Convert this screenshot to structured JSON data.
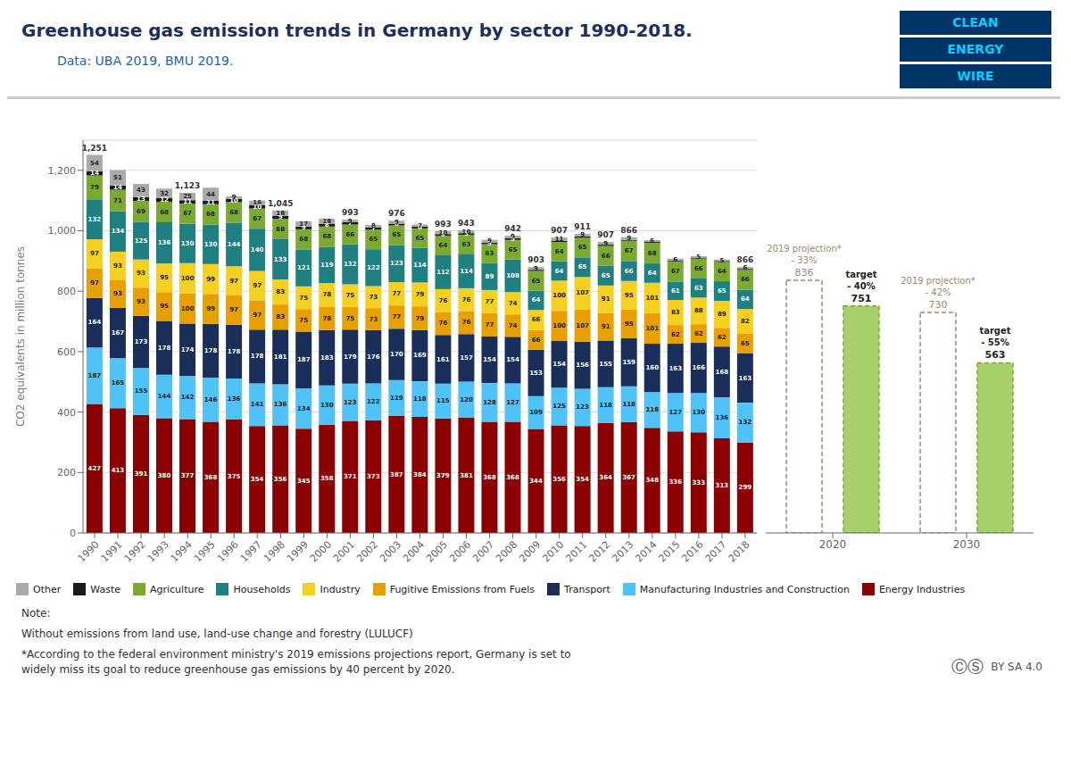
{
  "chart_data": [
    {
      "type": "bar",
      "title": "Greenhouse gas emission trends in Germany by sector 1990-2018.",
      "subtitle": "Data: UBA 2019, BMU 2019.",
      "ylabel": "CO2 equivalents in million tonnes",
      "logo": [
        "CLEAN",
        "ENERGY",
        "WIRE"
      ],
      "notes": [
        "Note:",
        "Without emissions from land use, land-use change and forestry (LULUCF)",
        "*According to the federal environment ministry's 2019 emissions projections report, Germany is set to",
        "widely miss its goal to reduce greenhouse gas emissions by 40 percent by 2020."
      ],
      "license": [
        "ⒸⓈ",
        "BY SA 4.0"
      ],
      "stacked": true,
      "grid": true,
      "legend": "bottom",
      "data_labels": true,
      "ylim": [
        0,
        1300
      ],
      "yticks": [
        0,
        200,
        400,
        600,
        800,
        {
          "value": 1000,
          "label": "1,000"
        },
        {
          "value": 1200,
          "label": "1,200"
        }
      ],
      "categories": [
        "1990",
        "1991",
        "1992",
        "1993",
        "1994",
        "1995",
        "1996",
        "1997",
        "1998",
        "1999",
        "2000",
        "2001",
        "2002",
        "2003",
        "2004",
        "2005",
        "2006",
        "2007",
        "2008",
        "2009",
        "2010",
        "2011",
        "2012",
        "2013",
        "2014",
        "2015",
        "2016",
        "2017",
        "2018"
      ],
      "series": [
        {
          "name": "Energy Industries",
          "color": "#8B0000",
          "values": [
            427,
            413,
            391,
            380,
            377,
            368,
            375,
            354,
            356,
            345,
            358,
            371,
            373,
            387,
            384,
            379,
            381,
            368,
            368,
            344,
            356,
            354,
            364,
            367,
            348,
            336,
            333,
            313,
            299
          ]
        },
        {
          "name": "Manufacturing Industries and Construction",
          "color": "#4FC3F7",
          "values": [
            187,
            165,
            155,
            144,
            142,
            146,
            136,
            141,
            136,
            134,
            130,
            123,
            122,
            119,
            118,
            115,
            120,
            128,
            127,
            109,
            125,
            123,
            118,
            118,
            118,
            127,
            130,
            136,
            132
          ]
        },
        {
          "name": "Transport",
          "color": "#1a2e5a",
          "values": [
            164,
            167,
            173,
            178,
            174,
            178,
            178,
            178,
            181,
            187,
            183,
            179,
            176,
            170,
            169,
            161,
            157,
            154,
            154,
            153,
            154,
            156,
            155,
            159,
            160,
            163,
            166,
            168,
            163
          ]
        },
        {
          "name": "Fugitive Emissions from Fuels",
          "color": "#E8A000",
          "values": [
            97,
            93,
            93,
            95,
            100,
            99,
            97,
            97,
            83,
            75,
            78,
            75,
            73,
            77,
            79,
            76,
            76,
            77,
            74,
            66,
            100,
            107,
            91,
            95,
            101,
            62,
            62,
            62,
            65
          ]
        },
        {
          "name": "Industry",
          "color": "#F5D020",
          "values": [
            97,
            93,
            93,
            95,
            100,
            99,
            97,
            97,
            83,
            75,
            78,
            75,
            73,
            77,
            79,
            76,
            76,
            77,
            74,
            66,
            100,
            107,
            91,
            95,
            101,
            83,
            88,
            89,
            82
          ]
        },
        {
          "name": "Households",
          "color": "#1E8080",
          "values": [
            132,
            134,
            125,
            136,
            130,
            130,
            144,
            140,
            133,
            121,
            119,
            132,
            122,
            123,
            114,
            112,
            114,
            89,
            108,
            64,
            64,
            65,
            65,
            66,
            64,
            61,
            63,
            65,
            64
          ]
        },
        {
          "name": "Agriculture",
          "color": "#7AAB30",
          "values": [
            79,
            71,
            69,
            68,
            67,
            68,
            68,
            67,
            68,
            68,
            68,
            66,
            65,
            65,
            65,
            64,
            63,
            63,
            65,
            65,
            64,
            65,
            66,
            67,
            68,
            67,
            66,
            64,
            66
          ]
        },
        {
          "name": "Waste",
          "color": "#1a1a1a",
          "values": [
            14,
            14,
            13,
            12,
            11,
            11,
            10,
            10,
            9,
            9,
            8,
            7,
            7,
            6,
            6,
            6,
            5,
            5,
            5,
            4,
            4,
            4,
            4,
            3,
            3,
            3,
            3,
            3,
            3
          ],
          "value_labels": [
            "14",
            "14",
            "13",
            "12",
            "11",
            "11",
            "10",
            "10",
            "9",
            "9",
            "8",
            "7",
            "7",
            "6",
            "6",
            "6",
            "5",
            "5",
            "5",
            null,
            null,
            null,
            null,
            null,
            null,
            null,
            null,
            null,
            null
          ]
        },
        {
          "name": "Other",
          "color": "#AAAAAA",
          "values": [
            54,
            51,
            43,
            32,
            25,
            44,
            9,
            16,
            18,
            17,
            18,
            9,
            8,
            9,
            7,
            10,
            10,
            9,
            9,
            9,
            11,
            9,
            9,
            9,
            6,
            6,
            5,
            5,
            6
          ]
        }
      ],
      "totals": [
        1251,
        null,
        null,
        null,
        1123,
        null,
        null,
        null,
        1045,
        null,
        null,
        993,
        null,
        976,
        null,
        993,
        943,
        null,
        942,
        903,
        907,
        911,
        907,
        866,
        null,
        null,
        null,
        null,
        866
      ],
      "total_labels": [
        "1,251",
        null,
        null,
        null,
        "1,123",
        null,
        null,
        null,
        "1,045",
        null,
        null,
        "993",
        null,
        "976",
        null,
        "993",
        "943",
        null,
        "942",
        "903",
        "907",
        "911",
        "907",
        "866",
        null,
        null,
        null,
        null,
        "866"
      ]
    },
    {
      "type": "bar",
      "ylim": [
        0,
        1300
      ],
      "tick_labels": "x",
      "data_labels": true,
      "categories": [
        "2020",
        "2030"
      ],
      "series": [
        {
          "name": "2019 projection*",
          "type": "outline",
          "line_style": "dashed",
          "color": "#9B8B6B",
          "values": [
            836,
            730
          ],
          "change_labels": [
            "- 33%",
            "- 42%"
          ]
        },
        {
          "name": "target",
          "type": "bar",
          "line_style": "dashed",
          "color": "#A8D06A",
          "values": [
            751,
            563
          ],
          "change_labels": [
            "- 40%",
            "- 55%"
          ]
        }
      ]
    }
  ]
}
